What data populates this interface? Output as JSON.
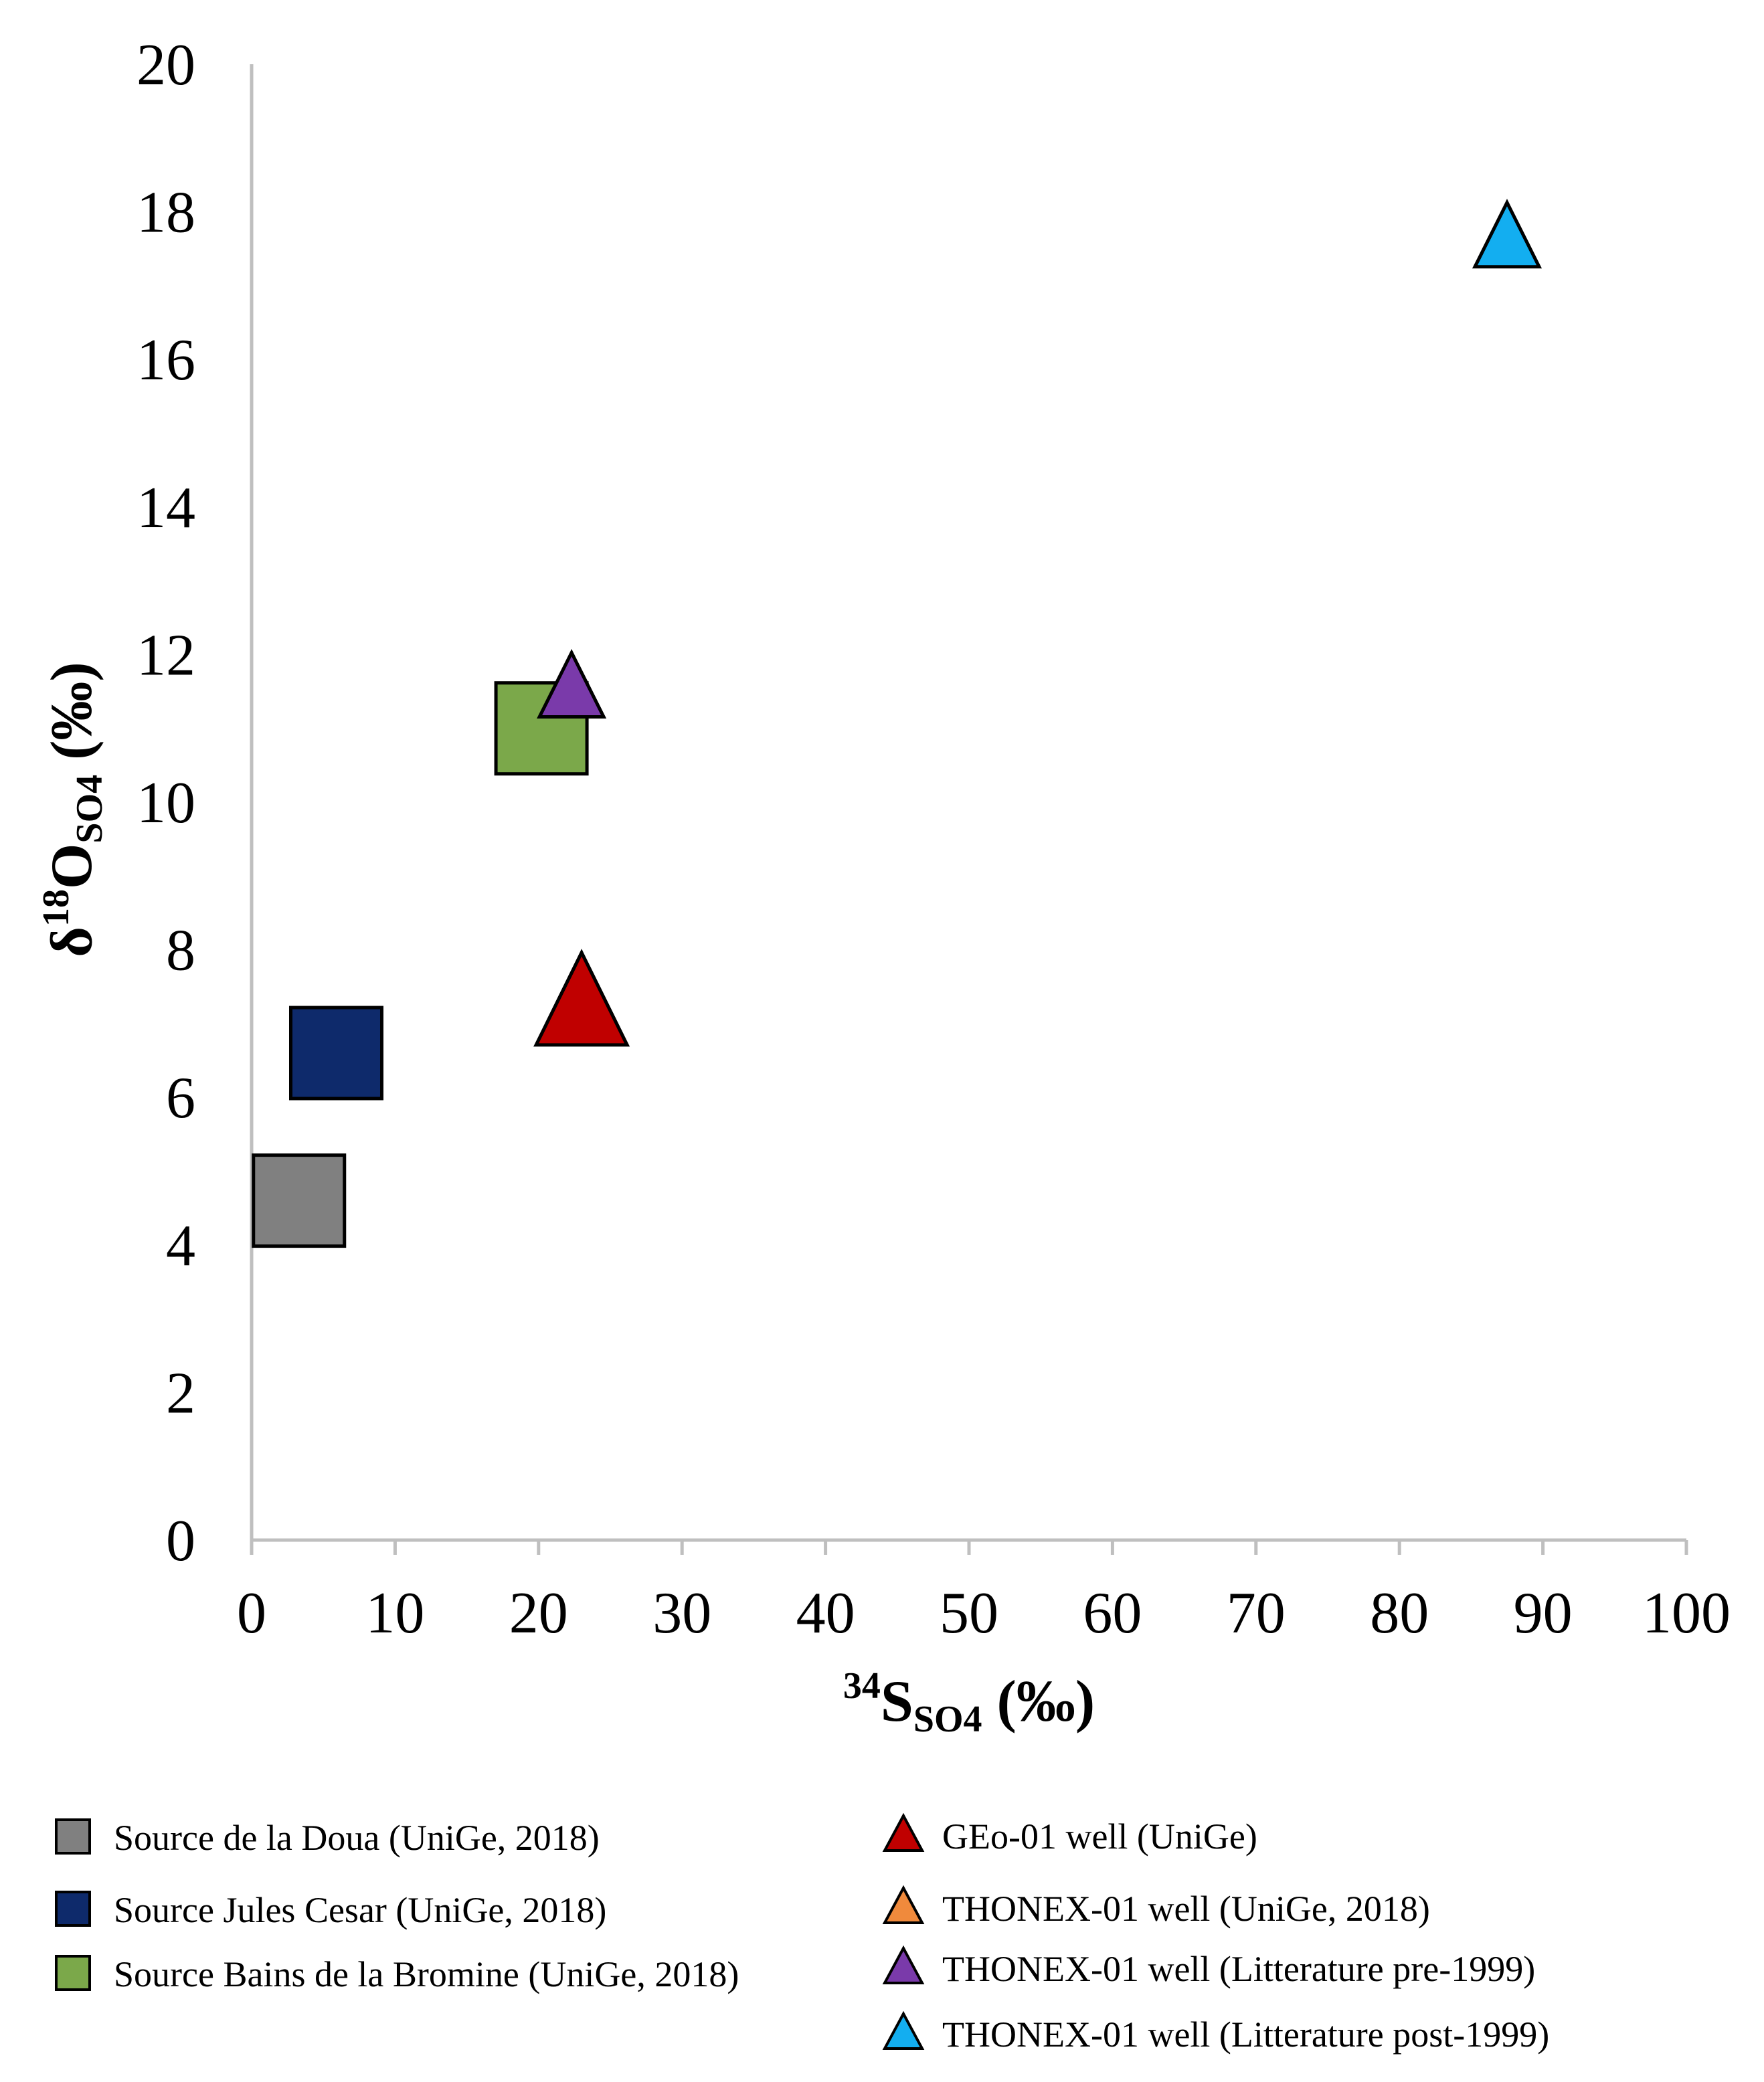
{
  "chart_data": {
    "type": "scatter",
    "title": "",
    "xlabel": {
      "superscript": "34",
      "main": "S",
      "subscript": "SO4",
      "unit": " (‰)"
    },
    "ylabel": {
      "prefix": "δ",
      "superscript": "18",
      "main": "O",
      "subscript": "SO4",
      "unit": " (‰)"
    },
    "xlim": [
      0,
      100
    ],
    "ylim": [
      0,
      20
    ],
    "xticks": [
      0,
      10,
      20,
      30,
      40,
      50,
      60,
      70,
      80,
      90,
      100
    ],
    "yticks": [
      0,
      2,
      4,
      6,
      8,
      10,
      12,
      14,
      16,
      18,
      20
    ],
    "grid": false,
    "legend_position": "bottom",
    "series": [
      {
        "name": "Source de la Doua (UniGe, 2018)",
        "marker": "square",
        "color": "#808080",
        "points": [
          {
            "x": 3.3,
            "y": 4.6
          }
        ]
      },
      {
        "name": "Source Jules Cesar (UniGe, 2018)",
        "marker": "square",
        "color": "#0e2a6b",
        "points": [
          {
            "x": 5.9,
            "y": 6.6
          }
        ]
      },
      {
        "name": "Source Bains de la Bromine (UniGe, 2018)",
        "marker": "square",
        "color": "#7ba84a",
        "points": [
          {
            "x": 20.2,
            "y": 11.0
          }
        ]
      },
      {
        "name": "GEo-01 well (UniGe)",
        "marker": "triangle",
        "color": "#c00000",
        "points": [
          {
            "x": 23.0,
            "y": 7.2
          }
        ]
      },
      {
        "name": "THONEX-01 well (UniGe, 2018)",
        "marker": "triangle",
        "color": "#f08a3c",
        "points": []
      },
      {
        "name": "THONEX-01 well (Litterature pre-1999)",
        "marker": "triangle",
        "color": "#7a3aaa",
        "points": [
          {
            "x": 22.3,
            "y": 11.5
          }
        ]
      },
      {
        "name": "THONEX-01 well (Litterature post-1999)",
        "marker": "triangle",
        "color": "#13aef0",
        "points": [
          {
            "x": 87.5,
            "y": 17.6
          }
        ]
      }
    ]
  }
}
